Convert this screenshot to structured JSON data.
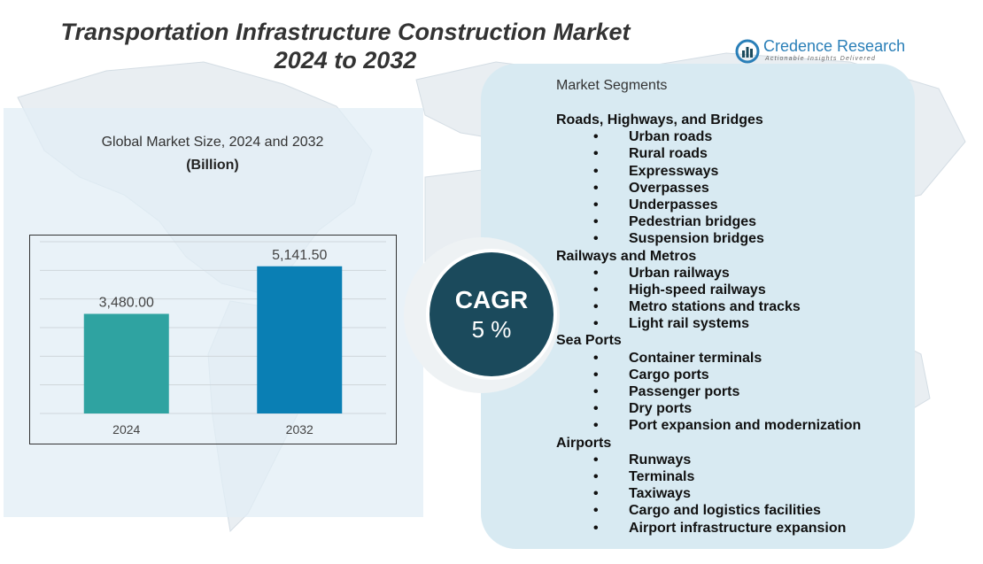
{
  "header": {
    "title_line1": "Transportation Infrastructure Construction Market",
    "title_line2": "2024 to 2032"
  },
  "brand": {
    "name": "Credence Research",
    "tagline": "Actionable Insights Delivered",
    "color": "#2a7fb8"
  },
  "chart_data": {
    "type": "bar",
    "title": "Global Market Size, 2024 and 2032",
    "unit": "(Billion)",
    "categories": [
      "2024",
      "2032"
    ],
    "values": [
      3480.0,
      5141.5
    ],
    "value_labels": [
      "3,480.00",
      "5,141.50"
    ],
    "colors": [
      "#2fa3a1",
      "#0a7fb4"
    ],
    "grid": true,
    "legend": "none"
  },
  "cagr": {
    "label": "CAGR",
    "value": "5 %"
  },
  "segments": {
    "header": "Market Segments",
    "bullet": "•",
    "groups": [
      {
        "name": "Roads, Highways, and Bridges",
        "items": [
          "Urban roads",
          "Rural roads",
          "Expressways",
          "Overpasses",
          "Underpasses",
          "Pedestrian bridges",
          "Suspension bridges"
        ]
      },
      {
        "name": "Railways and Metros",
        "items": [
          "Urban railways",
          "High-speed railways",
          "Metro stations and tracks",
          "Light rail systems"
        ]
      },
      {
        "name": "Sea Ports",
        "items": [
          "Container terminals",
          "Cargo ports",
          "Passenger ports",
          "Dry ports",
          "Port expansion and modernization"
        ]
      },
      {
        "name": "Airports",
        "items": [
          "Runways",
          "Terminals",
          "Taxiways",
          "Cargo and logistics facilities",
          "Airport infrastructure expansion"
        ]
      }
    ]
  }
}
